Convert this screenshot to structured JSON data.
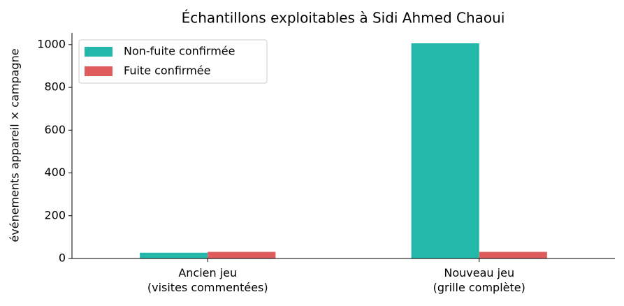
{
  "chart_data": {
    "type": "bar",
    "title": "Échantillons exploitables à Sidi Ahmed Chaoui",
    "ylabel": "événements appareil × campagne",
    "categories": [
      [
        "Ancien jeu",
        "(visites commentées)"
      ],
      [
        "Nouveau jeu",
        "(grille complète)"
      ]
    ],
    "series": [
      {
        "name": "Non-fuite confirmée",
        "color": "#23b8a9",
        "values": [
          27,
          1006
        ]
      },
      {
        "name": "Fuite confirmée",
        "color": "#e05c5c",
        "values": [
          31,
          31
        ]
      }
    ],
    "ylim": [
      0,
      1055
    ],
    "yticks": [
      0,
      200,
      400,
      600,
      800,
      1000
    ],
    "legend": "upper left"
  }
}
